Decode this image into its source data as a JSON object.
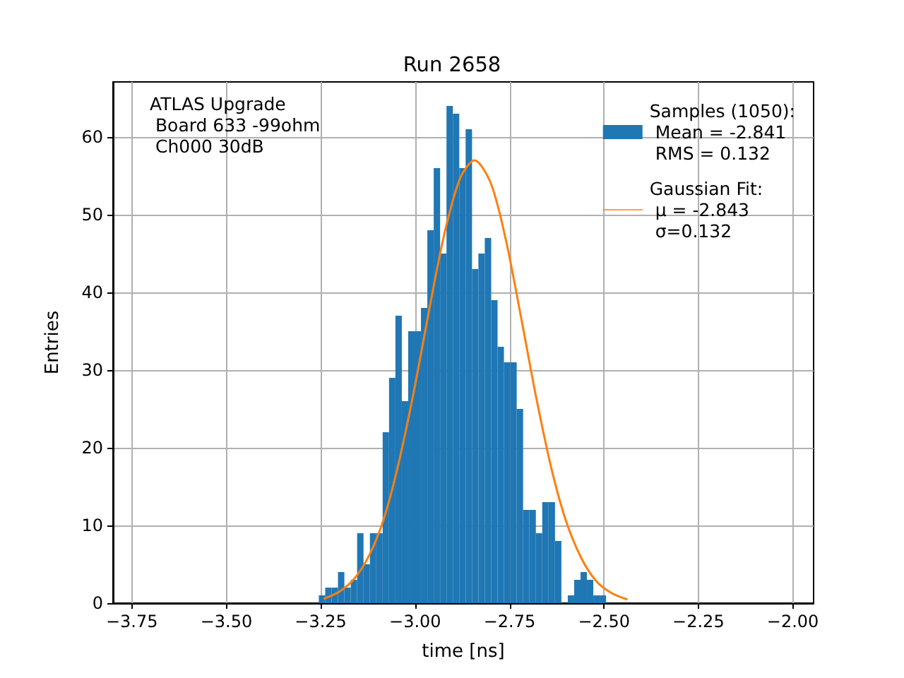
{
  "chart_data": {
    "type": "histogram",
    "title": "Run 2658",
    "xlabel": "time [ns]",
    "ylabel": "Entries",
    "bins": [
      -3.255,
      -3.2381,
      -3.2212,
      -3.2043,
      -3.1874,
      -3.1705,
      -3.1536,
      -3.1367,
      -3.1198,
      -3.1029,
      -3.086,
      -3.0691,
      -3.0522,
      -3.0353,
      -3.0184,
      -3.0015,
      -2.9846,
      -2.9677,
      -2.9508,
      -2.9339,
      -2.917,
      -2.9001,
      -2.8832,
      -2.8663,
      -2.8494,
      -2.8325,
      -2.8156,
      -2.7987,
      -2.7818,
      -2.7649,
      -2.748,
      -2.7311,
      -2.7142,
      -2.6973,
      -2.6804,
      -2.6635,
      -2.6466,
      -2.6297,
      -2.6128,
      -2.5959,
      -2.579,
      -2.5621,
      -2.5452,
      -2.5283,
      -2.5114,
      -2.4945
    ],
    "series": [
      {
        "name": "Samples (1050):\n Mean = -2.841\n RMS = 0.132",
        "color": "#1f77b4",
        "values": [
          1,
          2,
          2,
          4,
          2,
          3,
          9,
          5,
          9,
          9,
          22,
          29,
          37,
          26,
          35,
          35,
          38,
          48,
          56,
          45,
          64,
          63,
          56,
          61,
          43,
          45,
          47,
          39,
          33,
          31,
          31,
          25,
          12,
          12,
          9,
          13,
          13,
          8,
          0,
          1,
          3,
          4,
          3,
          1,
          1
        ]
      },
      {
        "type": "line",
        "name": "Gaussian Fit:\n μ = -2.843\n σ=0.132",
        "color": "#ff7f0e",
        "x": [
          -3.24,
          -3.2,
          -3.16,
          -3.12,
          -3.08,
          -3.04,
          -3.0,
          -2.96,
          -2.92,
          -2.88,
          -2.843,
          -2.8,
          -2.76,
          -2.72,
          -2.68,
          -2.64,
          -2.6,
          -2.56,
          -2.52,
          -2.48,
          -2.44
        ],
        "values": [
          0.6,
          1.5,
          3.2,
          6.3,
          11.3,
          18.8,
          28.1,
          38.5,
          48.1,
          54.8,
          57,
          54.1,
          46.8,
          36.9,
          26.6,
          17.5,
          10.5,
          5.8,
          2.8,
          1.3,
          0.5
        ]
      }
    ],
    "xlim": [
      -3.8,
      -1.945
    ],
    "xticks": [
      {
        "value": -3.75,
        "label": "−3.75"
      },
      {
        "value": -3.5,
        "label": "−3.50"
      },
      {
        "value": -3.25,
        "label": "−3.25"
      },
      {
        "value": -3.0,
        "label": "−3.00"
      },
      {
        "value": -2.75,
        "label": "−2.75"
      },
      {
        "value": -2.5,
        "label": "−2.50"
      },
      {
        "value": -2.25,
        "label": "−2.25"
      },
      {
        "value": -2.0,
        "label": "−2.00"
      }
    ],
    "ylim": [
      0,
      67.1
    ],
    "yticks": [
      0,
      10,
      20,
      30,
      40,
      50,
      60
    ],
    "grid": true,
    "legend": "top right",
    "marker": "none",
    "annotations": [
      "ATLAS Upgrade\n Board 633 -99ohm\n Ch000 30dB"
    ]
  }
}
